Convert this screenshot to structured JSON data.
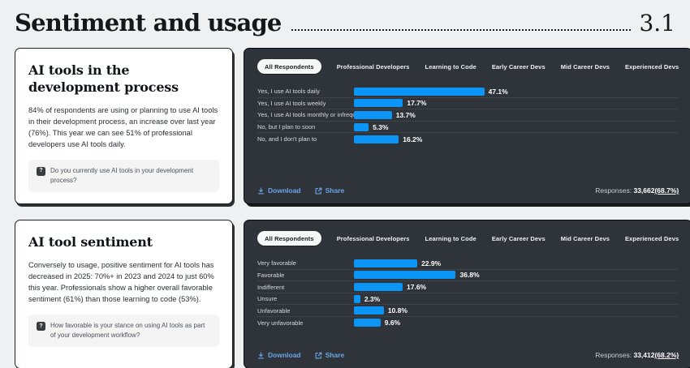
{
  "page": {
    "title": "Sentiment and usage",
    "section_number": "3.1"
  },
  "colors": {
    "accent_blue": "#0b95f7",
    "link_blue": "#6aa4e6",
    "panel_bg": "#2f343a",
    "page_bg": "#eef0f2"
  },
  "icons": {
    "question_glyph": "?"
  },
  "tabs": [
    "All Respondents",
    "Professional Developers",
    "Learning to Code",
    "Early Career Devs",
    "Mid Career Devs",
    "Experienced Devs"
  ],
  "active_tab": "All Respondents",
  "sections": [
    {
      "card": {
        "title": "AI tools in the development process",
        "body": "84% of respondents are using or planning to use AI tools in their development process, an increase over last year (76%). This year we can see 51% of professional developers use AI tools daily.",
        "question": "Do you currently use AI tools in your development process?"
      },
      "footer": {
        "download_label": "Download",
        "share_label": "Share",
        "responses_label": "Responses:",
        "responses_value": "33,662",
        "responses_pct": "(68.7%)"
      }
    },
    {
      "card": {
        "title": "AI tool sentiment",
        "body": "Conversely to usage, positive sentiment for AI tools has decreased in 2025: 70%+ in 2023 and 2024 to just 60% this year. Professionals show a higher overall favorable sentiment (61%) than those learning to code (53%).",
        "question": "How favorable is your stance on using AI tools as part of your development workflow?"
      },
      "footer": {
        "download_label": "Download",
        "share_label": "Share",
        "responses_label": "Responses:",
        "responses_value": "33,412",
        "responses_pct": "(68.2%)"
      }
    }
  ],
  "chart_data": [
    {
      "type": "bar",
      "title": "Do you currently use AI tools in your development process?",
      "orientation": "horizontal",
      "categories": [
        "Yes, I use AI tools daily",
        "Yes, I use AI tools weekly",
        "Yes, I use AI tools monthly or infrequently",
        "No, but I plan to soon",
        "No, and I don't plan to"
      ],
      "values": [
        47.1,
        17.7,
        13.7,
        5.3,
        16.2
      ],
      "value_labels": [
        "47.1%",
        "17.7%",
        "13.7%",
        "5.3%",
        "16.2%"
      ],
      "xlim": [
        0,
        100
      ],
      "grid": false,
      "legend": "none",
      "filter_tabs": [
        "All Respondents",
        "Professional Developers",
        "Learning to Code",
        "Early Career Devs",
        "Mid Career Devs",
        "Experienced Devs"
      ],
      "active_filter": "All Respondents",
      "responses": "33,662 (68.7%)"
    },
    {
      "type": "bar",
      "title": "How favorable is your stance on using AI tools as part of your development workflow?",
      "orientation": "horizontal",
      "categories": [
        "Very favorable",
        "Favorable",
        "Indifferent",
        "Unsure",
        "Unfavorable",
        "Very unfavorable"
      ],
      "values": [
        22.9,
        36.8,
        17.6,
        2.3,
        10.8,
        9.6
      ],
      "value_labels": [
        "22.9%",
        "36.8%",
        "17.6%",
        "2.3%",
        "10.8%",
        "9.6%"
      ],
      "xlim": [
        0,
        100
      ],
      "grid": false,
      "legend": "none",
      "filter_tabs": [
        "All Respondents",
        "Professional Developers",
        "Learning to Code",
        "Early Career Devs",
        "Mid Career Devs",
        "Experienced Devs"
      ],
      "active_filter": "All Respondents",
      "responses": "33,412 (68.2%)"
    }
  ]
}
